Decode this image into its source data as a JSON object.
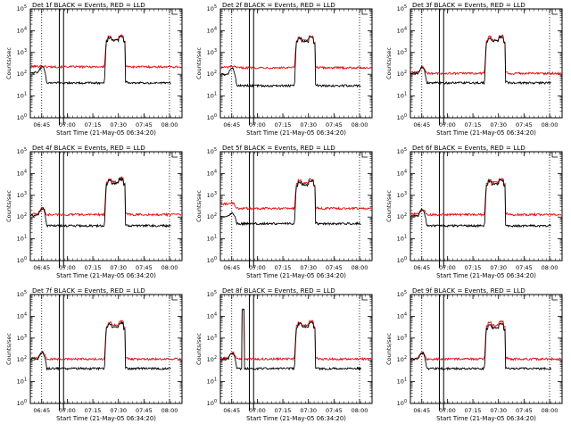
{
  "colors": {
    "events": "#000000",
    "lld": "#e01010",
    "axis": "#000000",
    "background": "#ffffff"
  },
  "shared": {
    "ylabel": "Counts/sec",
    "xlabel": "Start Time (21-May-05 06:34:20)",
    "x_ticks": [
      "06:45",
      "07:00",
      "07:15",
      "07:30",
      "07:45",
      "08:00"
    ],
    "y_tick_exponents": [
      "0",
      "1",
      "2",
      "3",
      "4",
      "5"
    ],
    "y_tick_base": "10"
  },
  "chart_data": [
    {
      "type": "line",
      "title": "Det 1f BLACK = Events, RED = LLD",
      "scale": "log",
      "ylim": [
        1,
        100000
      ],
      "xlim_min_after_start": [
        4,
        93
      ],
      "x_tick_min_after_start": [
        10.67,
        25.67,
        40.67,
        55.67,
        70.67,
        85.67
      ],
      "dotted_lines_min": [
        10.67,
        85.67
      ],
      "box_lines_min": [
        21.0,
        23.5
      ],
      "events": {
        "base": 40,
        "pre": 120,
        "peak": 220,
        "flat_top": 6000
      },
      "lld": {
        "base": 220,
        "pre": 230,
        "peak": 240,
        "flat_top": 6500
      }
    },
    {
      "type": "line",
      "title": "Det 2f BLACK = Events, RED = LLD",
      "scale": "log",
      "ylim": [
        1,
        100000
      ],
      "xlim_min_after_start": [
        4,
        93
      ],
      "x_tick_min_after_start": [
        10.67,
        25.67,
        40.67,
        55.67,
        70.67,
        85.67
      ],
      "dotted_lines_min": [
        10.67,
        85.67
      ],
      "box_lines_min": [
        21.0,
        23.5
      ],
      "events": {
        "base": 30,
        "pre": 100,
        "peak": 180,
        "flat_top": 5500
      },
      "lld": {
        "base": 200,
        "pre": 210,
        "peak": 230,
        "flat_top": 6000
      }
    },
    {
      "type": "line",
      "title": "Det 3f BLACK = Events, RED = LLD",
      "scale": "log",
      "ylim": [
        1,
        100000
      ],
      "xlim_min_after_start": [
        4,
        93
      ],
      "x_tick_min_after_start": [
        10.67,
        25.67,
        40.67,
        55.67,
        70.67,
        85.67
      ],
      "dotted_lines_min": [
        10.67,
        85.67
      ],
      "box_lines_min": [
        21.0,
        23.5
      ],
      "events": {
        "base": 40,
        "pre": 110,
        "peak": 200,
        "flat_top": 5500
      },
      "lld": {
        "base": 110,
        "pre": 120,
        "peak": 210,
        "flat_top": 6500
      }
    },
    {
      "type": "line",
      "title": "Det 4f BLACK = Events, RED = LLD",
      "scale": "log",
      "ylim": [
        1,
        100000
      ],
      "xlim_min_after_start": [
        4,
        93
      ],
      "x_tick_min_after_start": [
        10.67,
        25.67,
        40.67,
        55.67,
        70.67,
        85.67
      ],
      "dotted_lines_min": [
        10.67,
        85.67
      ],
      "box_lines_min": [
        21.0,
        23.5
      ],
      "events": {
        "base": 40,
        "pre": 120,
        "peak": 250,
        "flat_top": 6000
      },
      "lld": {
        "base": 130,
        "pre": 140,
        "peak": 260,
        "flat_top": 7000
      }
    },
    {
      "type": "line",
      "title": "Det 5f BLACK = Events, RED = LLD",
      "scale": "log",
      "ylim": [
        1,
        100000
      ],
      "xlim_min_after_start": [
        4,
        93
      ],
      "x_tick_min_after_start": [
        10.67,
        25.67,
        40.67,
        55.67,
        70.67,
        85.67
      ],
      "dotted_lines_min": [
        10.67,
        85.67
      ],
      "box_lines_min": [
        21.0,
        23.5
      ],
      "events": {
        "base": 50,
        "pre": 110,
        "peak": 150,
        "flat_top": 5000
      },
      "lld": {
        "base": 250,
        "pre": 400,
        "peak": 450,
        "flat_top": 6000
      }
    },
    {
      "type": "line",
      "title": "Det 6f BLACK = Events, RED = LLD",
      "scale": "log",
      "ylim": [
        1,
        100000
      ],
      "xlim_min_after_start": [
        4,
        93
      ],
      "x_tick_min_after_start": [
        10.67,
        25.67,
        40.67,
        55.67,
        70.67,
        85.67
      ],
      "dotted_lines_min": [
        10.67,
        85.67
      ],
      "box_lines_min": [
        21.0,
        23.5
      ],
      "events": {
        "base": 40,
        "pre": 110,
        "peak": 210,
        "flat_top": 5500
      },
      "lld": {
        "base": 130,
        "pre": 140,
        "peak": 220,
        "flat_top": 6500
      }
    },
    {
      "type": "line",
      "title": "Det 7f BLACK = Events, RED = LLD",
      "scale": "log",
      "ylim": [
        1,
        100000
      ],
      "xlim_min_after_start": [
        4,
        93
      ],
      "x_tick_min_after_start": [
        10.67,
        25.67,
        40.67,
        55.67,
        70.67,
        85.67
      ],
      "dotted_lines_min": [
        10.67,
        85.67
      ],
      "box_lines_min": [
        21.0,
        23.5
      ],
      "events": {
        "base": 40,
        "pre": 110,
        "peak": 220,
        "flat_top": 5500
      },
      "lld": {
        "base": 110,
        "pre": 120,
        "peak": 230,
        "flat_top": 6500
      }
    },
    {
      "type": "line",
      "title": "Det 8f BLACK = Events, RED = LLD",
      "scale": "log",
      "ylim": [
        1,
        100000
      ],
      "xlim_min_after_start": [
        4,
        93
      ],
      "x_tick_min_after_start": [
        10.67,
        25.67,
        40.67,
        55.67,
        70.67,
        85.67
      ],
      "dotted_lines_min": [
        10.67,
        85.67
      ],
      "box_lines_min": [
        21.0,
        23.5
      ],
      "events": {
        "base": 40,
        "pre": 110,
        "peak": 200,
        "flat_top": 5500
      },
      "lld": {
        "base": 110,
        "pre": 120,
        "peak": 210,
        "flat_top": 6500
      },
      "extra_spike": {
        "start_min": 16.5,
        "end_min": 18,
        "value": 20000
      }
    },
    {
      "type": "line",
      "title": "Det 9f BLACK = Events, RED = LLD",
      "scale": "log",
      "ylim": [
        1,
        100000
      ],
      "xlim_min_after_start": [
        4,
        93
      ],
      "x_tick_min_after_start": [
        10.67,
        25.67,
        40.67,
        55.67,
        70.67,
        85.67
      ],
      "dotted_lines_min": [
        10.67,
        85.67
      ],
      "box_lines_min": [
        21.0,
        23.5
      ],
      "events": {
        "base": 40,
        "pre": 110,
        "peak": 200,
        "flat_top": 5000
      },
      "lld": {
        "base": 110,
        "pre": 120,
        "peak": 210,
        "flat_top": 6500
      }
    }
  ]
}
